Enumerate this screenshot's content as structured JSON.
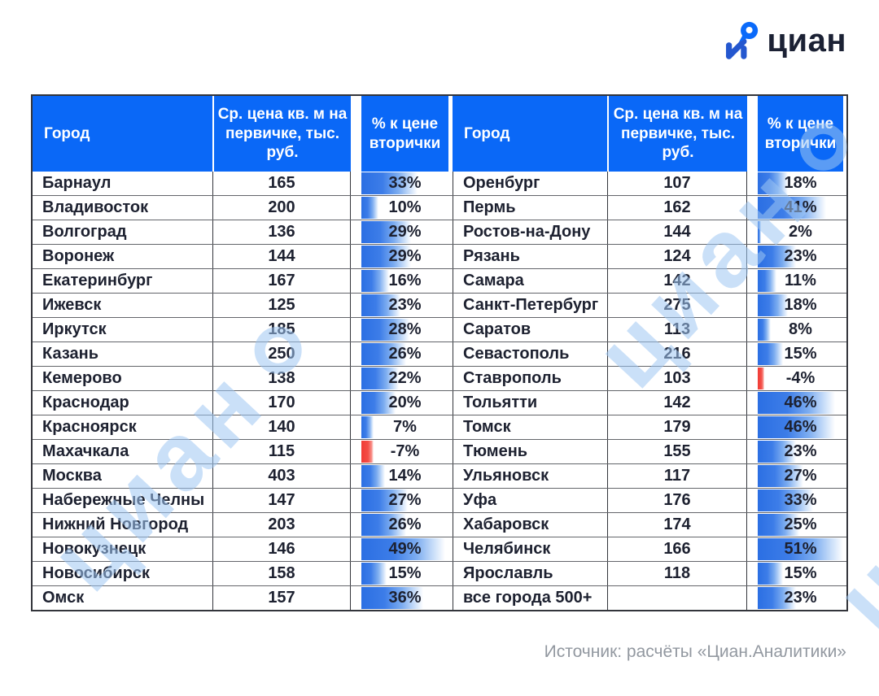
{
  "logo": {
    "text": "циан"
  },
  "table_headers": {
    "city": "Город",
    "price": "Ср. цена кв. м на первичке, тыс. руб.",
    "pct": "% к цене вторички"
  },
  "chart_data": {
    "type": "table",
    "columns": [
      "Город",
      "Ср. цена кв. м на первичке, тыс. руб.",
      "% к цене вторички"
    ],
    "bar_scale_max": 51,
    "left_rows": [
      {
        "city": "Барнаул",
        "price": "165",
        "pct": "33%",
        "pct_value": 33
      },
      {
        "city": "Владивосток",
        "price": "200",
        "pct": "10%",
        "pct_value": 10
      },
      {
        "city": "Волгоград",
        "price": "136",
        "pct": "29%",
        "pct_value": 29
      },
      {
        "city": "Воронеж",
        "price": "144",
        "pct": "29%",
        "pct_value": 29
      },
      {
        "city": "Екатеринбург",
        "price": "167",
        "pct": "16%",
        "pct_value": 16
      },
      {
        "city": "Ижевск",
        "price": "125",
        "pct": "23%",
        "pct_value": 23
      },
      {
        "city": "Иркутск",
        "price": "185",
        "pct": "28%",
        "pct_value": 28
      },
      {
        "city": "Казань",
        "price": "250",
        "pct": "26%",
        "pct_value": 26
      },
      {
        "city": "Кемерово",
        "price": "138",
        "pct": "22%",
        "pct_value": 22
      },
      {
        "city": "Краснодар",
        "price": "170",
        "pct": "20%",
        "pct_value": 20
      },
      {
        "city": "Красноярск",
        "price": "140",
        "pct": "7%",
        "pct_value": 7
      },
      {
        "city": "Махачкала",
        "price": "115",
        "pct": "-7%",
        "pct_value": -7
      },
      {
        "city": "Москва",
        "price": "403",
        "pct": "14%",
        "pct_value": 14
      },
      {
        "city": "Набережные Челны",
        "price": "147",
        "pct": "27%",
        "pct_value": 27
      },
      {
        "city": "Нижний Новгород",
        "price": "203",
        "pct": "26%",
        "pct_value": 26
      },
      {
        "city": "Новокузнецк",
        "price": "146",
        "pct": "49%",
        "pct_value": 49
      },
      {
        "city": "Новосибирск",
        "price": "158",
        "pct": "15%",
        "pct_value": 15
      },
      {
        "city": "Омск",
        "price": "157",
        "pct": "36%",
        "pct_value": 36
      }
    ],
    "right_rows": [
      {
        "city": "Оренбург",
        "price": "107",
        "pct": "18%",
        "pct_value": 18
      },
      {
        "city": "Пермь",
        "price": "162",
        "pct": "41%",
        "pct_value": 41
      },
      {
        "city": "Ростов-на-Дону",
        "price": "144",
        "pct": "2%",
        "pct_value": 2
      },
      {
        "city": "Рязань",
        "price": "124",
        "pct": "23%",
        "pct_value": 23
      },
      {
        "city": "Самара",
        "price": "142",
        "pct": "11%",
        "pct_value": 11
      },
      {
        "city": "Санкт-Петербург",
        "price": "275",
        "pct": "18%",
        "pct_value": 18
      },
      {
        "city": "Саратов",
        "price": "113",
        "pct": "8%",
        "pct_value": 8
      },
      {
        "city": "Севастополь",
        "price": "216",
        "pct": "15%",
        "pct_value": 15
      },
      {
        "city": "Ставрополь",
        "price": "103",
        "pct": "-4%",
        "pct_value": -4
      },
      {
        "city": "Тольятти",
        "price": "142",
        "pct": "46%",
        "pct_value": 46
      },
      {
        "city": "Томск",
        "price": "179",
        "pct": "46%",
        "pct_value": 46
      },
      {
        "city": "Тюмень",
        "price": "155",
        "pct": "23%",
        "pct_value": 23
      },
      {
        "city": "Ульяновск",
        "price": "117",
        "pct": "27%",
        "pct_value": 27
      },
      {
        "city": "Уфа",
        "price": "176",
        "pct": "33%",
        "pct_value": 33
      },
      {
        "city": "Хабаровск",
        "price": "174",
        "pct": "25%",
        "pct_value": 25
      },
      {
        "city": "Челябинск",
        "price": "166",
        "pct": "51%",
        "pct_value": 51
      },
      {
        "city": "Ярославль",
        "price": "118",
        "pct": "15%",
        "pct_value": 15
      },
      {
        "city": "все города 500+",
        "price": "",
        "pct": "23%",
        "pct_value": 23
      }
    ]
  },
  "footer": {
    "source": "Источник: расчёты «Циан.Аналитики»"
  },
  "watermark": {
    "text": "циан"
  },
  "colors": {
    "header_bg": "#0a68f7",
    "header_text": "#ffffff",
    "body_text": "#1d2130",
    "bar_positive": "#2f74e5",
    "bar_negative": "#f13b35",
    "watermark": "#cfe2f9",
    "footer_text": "#9298a0",
    "logo_pin": "#0a6afa",
    "logo_body": "#2457cf",
    "logo_text": "#1b2134"
  }
}
